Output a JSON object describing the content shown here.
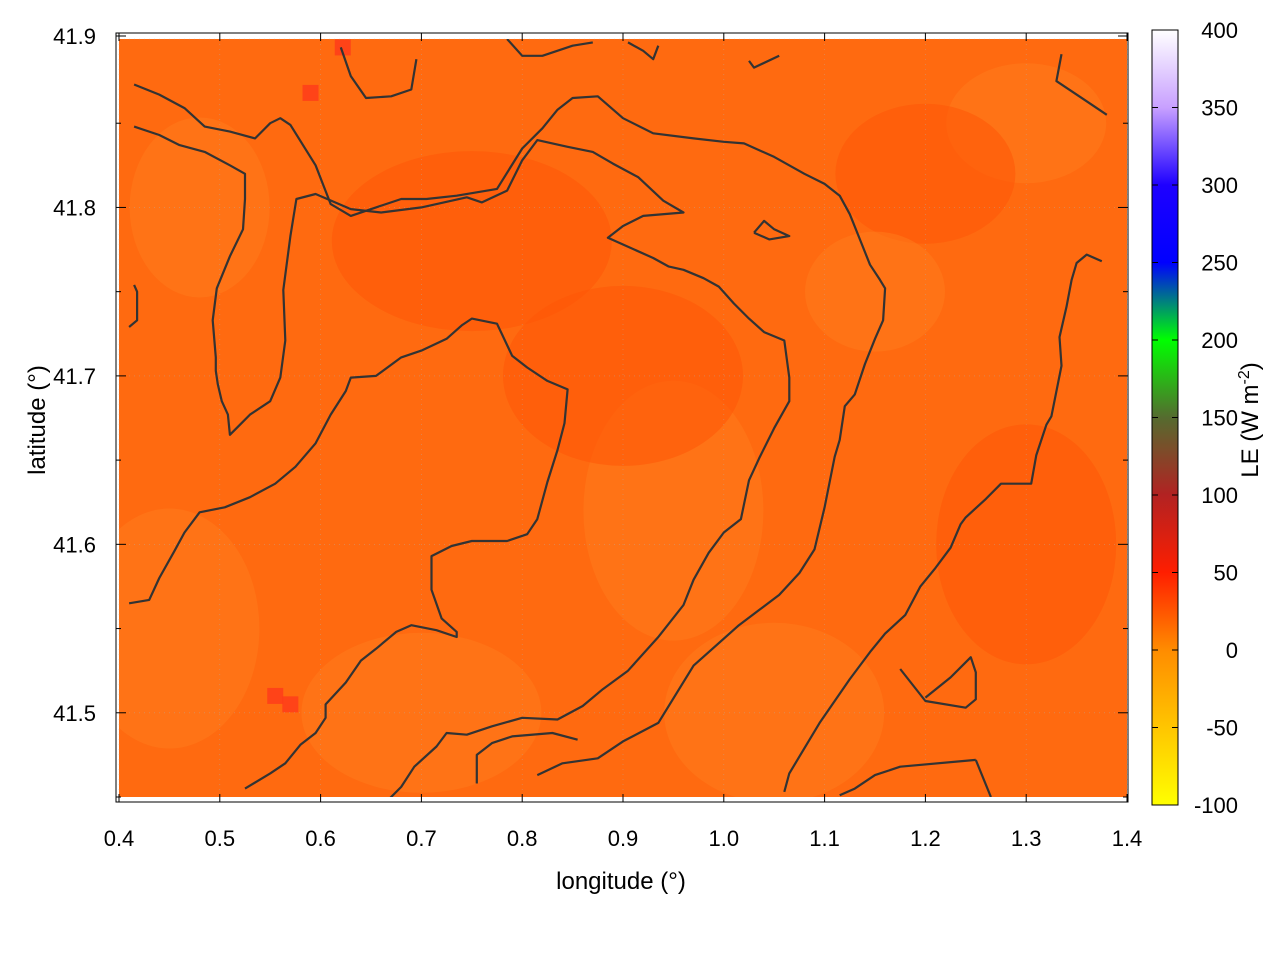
{
  "chart_data": {
    "type": "heatmap",
    "xlabel": "longitude (°)",
    "ylabel": "latitude (°)",
    "colorbar_label": "LE (W m-2)",
    "xlim": [
      0.4,
      1.4
    ],
    "ylim": [
      41.45,
      41.9
    ],
    "x_ticks": [
      "0.4",
      "0.5",
      "0.6",
      "0.7",
      "0.8",
      "0.9",
      "1.0",
      "1.1",
      "1.2",
      "1.3",
      "1.4"
    ],
    "y_ticks": [
      "41.5",
      "41.6",
      "41.7",
      "41.8",
      "41.9"
    ],
    "x_tick_values": [
      0.4,
      0.5,
      0.6,
      0.7,
      0.8,
      0.9,
      1.0,
      1.1,
      1.2,
      1.3,
      1.4
    ],
    "y_tick_values": [
      41.5,
      41.6,
      41.7,
      41.8,
      41.9
    ],
    "colorbar_range": [
      -100,
      400
    ],
    "colorbar_ticks": [
      "400",
      "350",
      "300",
      "250",
      "200",
      "150",
      "100",
      "50",
      "0",
      "-50",
      "-100"
    ],
    "colorbar_tick_values": [
      400,
      350,
      300,
      250,
      200,
      150,
      100,
      50,
      0,
      -50,
      -100
    ],
    "colormap": [
      {
        "value": -100,
        "color": "#ffff00"
      },
      {
        "value": 0,
        "color": "#ff8c00"
      },
      {
        "value": 50,
        "color": "#ff1e00"
      },
      {
        "value": 100,
        "color": "#b22222"
      },
      {
        "value": 150,
        "color": "#556b2f"
      },
      {
        "value": 200,
        "color": "#00ff00"
      },
      {
        "value": 250,
        "color": "#0000ff"
      },
      {
        "value": 300,
        "color": "#1e00ff"
      },
      {
        "value": 350,
        "color": "#c8a0ff"
      },
      {
        "value": 400,
        "color": "#ffffff"
      }
    ],
    "field_typical_value": 15,
    "field_colors": {
      "base": "#ff6a10",
      "lighter": "#ff7a1c",
      "darker": "#ff5508",
      "hotspot": "#ff3a1a"
    },
    "grid": true,
    "contour_color": "#333333",
    "contours": [
      [
        [
          0.415,
          41.873
        ],
        [
          0.44,
          41.867
        ],
        [
          0.465,
          41.859
        ],
        [
          0.485,
          41.848
        ],
        [
          0.51,
          41.845
        ],
        [
          0.535,
          41.841
        ],
        [
          0.55,
          41.85
        ],
        [
          0.56,
          41.853
        ],
        [
          0.57,
          41.849
        ],
        [
          0.595,
          41.825
        ],
        [
          0.61,
          41.802
        ],
        [
          0.63,
          41.795
        ],
        [
          0.655,
          41.8
        ],
        [
          0.68,
          41.805
        ],
        [
          0.705,
          41.805
        ],
        [
          0.735,
          41.807
        ],
        [
          0.775,
          41.811
        ],
        [
          0.8,
          41.835
        ],
        [
          0.82,
          41.847
        ],
        [
          0.835,
          41.858
        ],
        [
          0.85,
          41.865
        ],
        [
          0.875,
          41.866
        ],
        [
          0.9,
          41.853
        ],
        [
          0.93,
          41.844
        ],
        [
          0.97,
          41.841
        ],
        [
          1.0,
          41.839
        ],
        [
          1.02,
          41.838
        ],
        [
          1.05,
          41.83
        ],
        [
          1.08,
          41.82
        ],
        [
          1.1,
          41.814
        ],
        [
          1.115,
          41.807
        ],
        [
          1.125,
          41.796
        ],
        [
          1.135,
          41.781
        ],
        [
          1.145,
          41.766
        ],
        [
          1.155,
          41.757
        ],
        [
          1.16,
          41.752
        ],
        [
          1.158,
          41.733
        ],
        [
          1.15,
          41.722
        ],
        [
          1.14,
          41.707
        ],
        [
          1.13,
          41.689
        ],
        [
          1.12,
          41.682
        ],
        [
          1.115,
          41.662
        ],
        [
          1.11,
          41.652
        ],
        [
          1.1,
          41.622
        ],
        [
          1.09,
          41.597
        ],
        [
          1.075,
          41.583
        ],
        [
          1.055,
          41.57
        ],
        [
          1.035,
          41.561
        ],
        [
          1.015,
          41.552
        ],
        [
          0.97,
          41.528
        ],
        [
          0.935,
          41.494
        ],
        [
          0.9,
          41.483
        ],
        [
          0.875,
          41.473
        ],
        [
          0.84,
          41.47
        ],
        [
          0.815,
          41.463
        ]
      ],
      [
        [
          0.415,
          41.848
        ],
        [
          0.44,
          41.843
        ],
        [
          0.46,
          41.837
        ],
        [
          0.485,
          41.833
        ],
        [
          0.51,
          41.825
        ],
        [
          0.525,
          41.82
        ],
        [
          0.525,
          41.805
        ],
        [
          0.523,
          41.787
        ],
        [
          0.51,
          41.771
        ],
        [
          0.497,
          41.752
        ],
        [
          0.493,
          41.733
        ],
        [
          0.496,
          41.711
        ],
        [
          0.496,
          41.703
        ],
        [
          0.498,
          41.695
        ],
        [
          0.502,
          41.685
        ],
        [
          0.508,
          41.677
        ],
        [
          0.51,
          41.665
        ],
        [
          0.52,
          41.671
        ],
        [
          0.53,
          41.677
        ],
        [
          0.55,
          41.685
        ],
        [
          0.56,
          41.699
        ],
        [
          0.565,
          41.721
        ],
        [
          0.563,
          41.751
        ],
        [
          0.57,
          41.783
        ],
        [
          0.576,
          41.805
        ],
        [
          0.595,
          41.808
        ],
        [
          0.63,
          41.799
        ],
        [
          0.66,
          41.797
        ],
        [
          0.7,
          41.8
        ],
        [
          0.745,
          41.806
        ],
        [
          0.76,
          41.803
        ],
        [
          0.785,
          41.81
        ],
        [
          0.8,
          41.828
        ],
        [
          0.815,
          41.84
        ],
        [
          0.845,
          41.836
        ],
        [
          0.87,
          41.833
        ],
        [
          0.89,
          41.826
        ],
        [
          0.915,
          41.818
        ],
        [
          0.94,
          41.804
        ],
        [
          0.96,
          41.797
        ],
        [
          0.92,
          41.795
        ],
        [
          0.9,
          41.789
        ],
        [
          0.885,
          41.782
        ],
        [
          0.93,
          41.77
        ],
        [
          0.945,
          41.765
        ],
        [
          0.96,
          41.763
        ],
        [
          0.98,
          41.758
        ],
        [
          0.995,
          41.753
        ],
        [
          1.01,
          41.743
        ],
        [
          1.025,
          41.734
        ],
        [
          1.04,
          41.726
        ],
        [
          1.06,
          41.721
        ],
        [
          1.065,
          41.699
        ],
        [
          1.065,
          41.685
        ],
        [
          1.05,
          41.669
        ],
        [
          1.035,
          41.651
        ],
        [
          1.025,
          41.638
        ],
        [
          1.017,
          41.615
        ],
        [
          1.0,
          41.607
        ],
        [
          0.985,
          41.595
        ],
        [
          0.97,
          41.579
        ],
        [
          0.96,
          41.564
        ],
        [
          0.935,
          41.545
        ],
        [
          0.905,
          41.525
        ],
        [
          0.88,
          41.514
        ],
        [
          0.86,
          41.504
        ],
        [
          0.835,
          41.496
        ],
        [
          0.8,
          41.497
        ],
        [
          0.77,
          41.492
        ],
        [
          0.745,
          41.487
        ],
        [
          0.725,
          41.488
        ],
        [
          0.715,
          41.48
        ],
        [
          0.693,
          41.468
        ],
        [
          0.68,
          41.456
        ],
        [
          0.655,
          41.441
        ]
      ],
      [
        [
          0.41,
          41.565
        ],
        [
          0.43,
          41.567
        ],
        [
          0.44,
          41.58
        ],
        [
          0.455,
          41.596
        ],
        [
          0.465,
          41.607
        ],
        [
          0.48,
          41.619
        ],
        [
          0.505,
          41.622
        ],
        [
          0.53,
          41.628
        ],
        [
          0.555,
          41.636
        ],
        [
          0.575,
          41.646
        ],
        [
          0.595,
          41.66
        ],
        [
          0.61,
          41.677
        ],
        [
          0.625,
          41.691
        ],
        [
          0.63,
          41.699
        ],
        [
          0.655,
          41.7
        ],
        [
          0.68,
          41.711
        ],
        [
          0.7,
          41.715
        ],
        [
          0.725,
          41.722
        ],
        [
          0.74,
          41.73
        ],
        [
          0.75,
          41.734
        ],
        [
          0.775,
          41.731
        ],
        [
          0.79,
          41.712
        ],
        [
          0.805,
          41.705
        ],
        [
          0.825,
          41.697
        ],
        [
          0.845,
          41.692
        ],
        [
          0.842,
          41.672
        ],
        [
          0.835,
          41.656
        ],
        [
          0.825,
          41.637
        ],
        [
          0.815,
          41.615
        ],
        [
          0.805,
          41.606
        ],
        [
          0.785,
          41.602
        ],
        [
          0.75,
          41.602
        ],
        [
          0.73,
          41.599
        ],
        [
          0.71,
          41.593
        ],
        [
          0.71,
          41.573
        ],
        [
          0.72,
          41.556
        ],
        [
          0.735,
          41.548
        ],
        [
          0.735,
          41.545
        ],
        [
          0.715,
          41.549
        ],
        [
          0.69,
          41.552
        ],
        [
          0.675,
          41.548
        ],
        [
          0.655,
          41.538
        ],
        [
          0.64,
          41.531
        ],
        [
          0.625,
          41.518
        ],
        [
          0.605,
          41.505
        ],
        [
          0.605,
          41.497
        ],
        [
          0.595,
          41.488
        ],
        [
          0.58,
          41.481
        ],
        [
          0.565,
          41.47
        ],
        [
          0.55,
          41.464
        ],
        [
          0.525,
          41.455
        ]
      ],
      [
        [
          1.335,
          41.891
        ],
        [
          1.33,
          41.875
        ],
        [
          1.34,
          41.871
        ],
        [
          1.36,
          41.863
        ],
        [
          1.38,
          41.855
        ]
      ],
      [
        [
          1.375,
          41.768
        ],
        [
          1.36,
          41.772
        ],
        [
          1.35,
          41.767
        ],
        [
          1.345,
          41.757
        ],
        [
          1.34,
          41.741
        ],
        [
          1.333,
          41.723
        ],
        [
          1.335,
          41.706
        ],
        [
          1.325,
          41.676
        ],
        [
          1.32,
          41.671
        ],
        [
          1.31,
          41.653
        ],
        [
          1.305,
          41.636
        ],
        [
          1.275,
          41.636
        ],
        [
          1.26,
          41.627
        ],
        [
          1.24,
          41.616
        ],
        [
          1.235,
          41.612
        ],
        [
          1.225,
          41.598
        ],
        [
          1.21,
          41.586
        ],
        [
          1.195,
          41.575
        ],
        [
          1.18,
          41.558
        ],
        [
          1.16,
          41.547
        ],
        [
          1.145,
          41.536
        ],
        [
          1.125,
          41.52
        ],
        [
          1.11,
          41.507
        ],
        [
          1.095,
          41.494
        ],
        [
          1.075,
          41.474
        ],
        [
          1.065,
          41.464
        ],
        [
          1.06,
          41.453
        ]
      ],
      [
        [
          1.115,
          41.451
        ],
        [
          1.13,
          41.455
        ],
        [
          1.15,
          41.463
        ],
        [
          1.175,
          41.468
        ],
        [
          1.25,
          41.472
        ]
      ],
      [
        [
          1.25,
          41.472
        ],
        [
          1.265,
          41.45
        ]
      ],
      [
        [
          1.175,
          41.526
        ],
        [
          1.2,
          41.507
        ],
        [
          1.24,
          41.503
        ],
        [
          1.25,
          41.508
        ],
        [
          1.25,
          41.524
        ],
        [
          1.245,
          41.533
        ],
        [
          1.225,
          41.521
        ],
        [
          1.2,
          41.509
        ]
      ],
      [
        [
          1.03,
          41.785
        ],
        [
          1.04,
          41.792
        ],
        [
          1.05,
          41.787
        ],
        [
          1.065,
          41.783
        ],
        [
          1.045,
          41.781
        ],
        [
          1.03,
          41.785
        ]
      ],
      [
        [
          0.62,
          41.895
        ],
        [
          0.63,
          41.878
        ],
        [
          0.645,
          41.865
        ],
        [
          0.67,
          41.866
        ],
        [
          0.69,
          41.87
        ],
        [
          0.695,
          41.888
        ]
      ],
      [
        [
          0.785,
          41.9
        ],
        [
          0.8,
          41.89
        ],
        [
          0.82,
          41.89
        ],
        [
          0.85,
          41.896
        ],
        [
          0.87,
          41.898
        ]
      ],
      [
        [
          0.905,
          41.898
        ],
        [
          0.92,
          41.893
        ],
        [
          0.93,
          41.888
        ],
        [
          0.935,
          41.896
        ]
      ],
      [
        [
          1.025,
          41.887
        ],
        [
          1.03,
          41.883
        ],
        [
          1.055,
          41.89
        ]
      ],
      [
        [
          0.415,
          41.754
        ],
        [
          0.418,
          41.75
        ],
        [
          0.418,
          41.733
        ],
        [
          0.41,
          41.729
        ]
      ],
      [
        [
          0.755,
          41.458
        ],
        [
          0.755,
          41.475
        ],
        [
          0.77,
          41.482
        ],
        [
          0.79,
          41.486
        ],
        [
          0.83,
          41.488
        ],
        [
          0.855,
          41.484
        ]
      ]
    ]
  }
}
